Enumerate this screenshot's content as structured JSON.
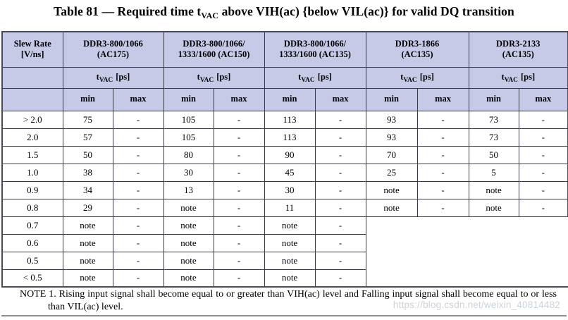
{
  "title": {
    "pre": "Table 81 — Required time t",
    "sub": "VAC",
    "post": " above VIH(ac) {below VIL(ac)} for valid DQ transition"
  },
  "table": {
    "slew_header": {
      "line1": "Slew Rate",
      "line2": "[V/ns]"
    },
    "groups": [
      {
        "line1": "DDR3-800/1066",
        "line2": "(AC175)"
      },
      {
        "line1": "DDR3-800/1066/",
        "line2": "1333/1600 (AC150)"
      },
      {
        "line1": "DDR3-800/1066/",
        "line2": "1333/1600 (AC135)"
      },
      {
        "line1": "DDR3-1866",
        "line2": "(AC135)"
      },
      {
        "line1": "DDR3-2133",
        "line2": "(AC135)"
      }
    ],
    "tvac_label": {
      "base": "t",
      "sub": "VAC",
      "unit": "[ps]"
    },
    "min_label": "min",
    "max_label": "max",
    "rows": [
      {
        "slew": "> 2.0",
        "values": [
          "75",
          "-",
          "105",
          "-",
          "113",
          "-",
          "93",
          "-",
          "73",
          "-"
        ]
      },
      {
        "slew": "2.0",
        "values": [
          "57",
          "-",
          "105",
          "-",
          "113",
          "-",
          "93",
          "-",
          "73",
          "-"
        ]
      },
      {
        "slew": "1.5",
        "values": [
          "50",
          "-",
          "80",
          "-",
          "90",
          "-",
          "70",
          "-",
          "50",
          "-"
        ]
      },
      {
        "slew": "1.0",
        "values": [
          "38",
          "-",
          "30",
          "-",
          "45",
          "-",
          "25",
          "-",
          "5",
          "-"
        ]
      },
      {
        "slew": "0.9",
        "values": [
          "34",
          "-",
          "13",
          "-",
          "30",
          "-",
          "note",
          "-",
          "note",
          "-"
        ]
      },
      {
        "slew": "0.8",
        "values": [
          "29",
          "-",
          "note",
          "-",
          "11",
          "-",
          "note",
          "-",
          "note",
          "-"
        ]
      },
      {
        "slew": "0.7",
        "values": [
          "note",
          "-",
          "note",
          "-",
          "note",
          "-"
        ],
        "merged_start": true
      },
      {
        "slew": "0.6",
        "values": [
          "note",
          "-",
          "note",
          "-",
          "note",
          "-"
        ]
      },
      {
        "slew": "0.5",
        "values": [
          "note",
          "-",
          "note",
          "-",
          "note",
          "-"
        ]
      },
      {
        "slew": "< 0.5",
        "values": [
          "note",
          "-",
          "note",
          "-",
          "note",
          "-"
        ]
      }
    ]
  },
  "note": "NOTE 1. Rising input signal shall become equal to or greater than VIH(ac) level and Falling input signal shall become equal to or less than VIL(ac) level.",
  "watermark": "https://blog.csdn.net/weixin_40814482",
  "colors": {
    "header_bg": "#c6cae6",
    "grid": "#3a3a44",
    "outer_border": "#4b4b55",
    "watermark": "#ccd3d9",
    "bottom_rule": "#8e8e8e"
  }
}
